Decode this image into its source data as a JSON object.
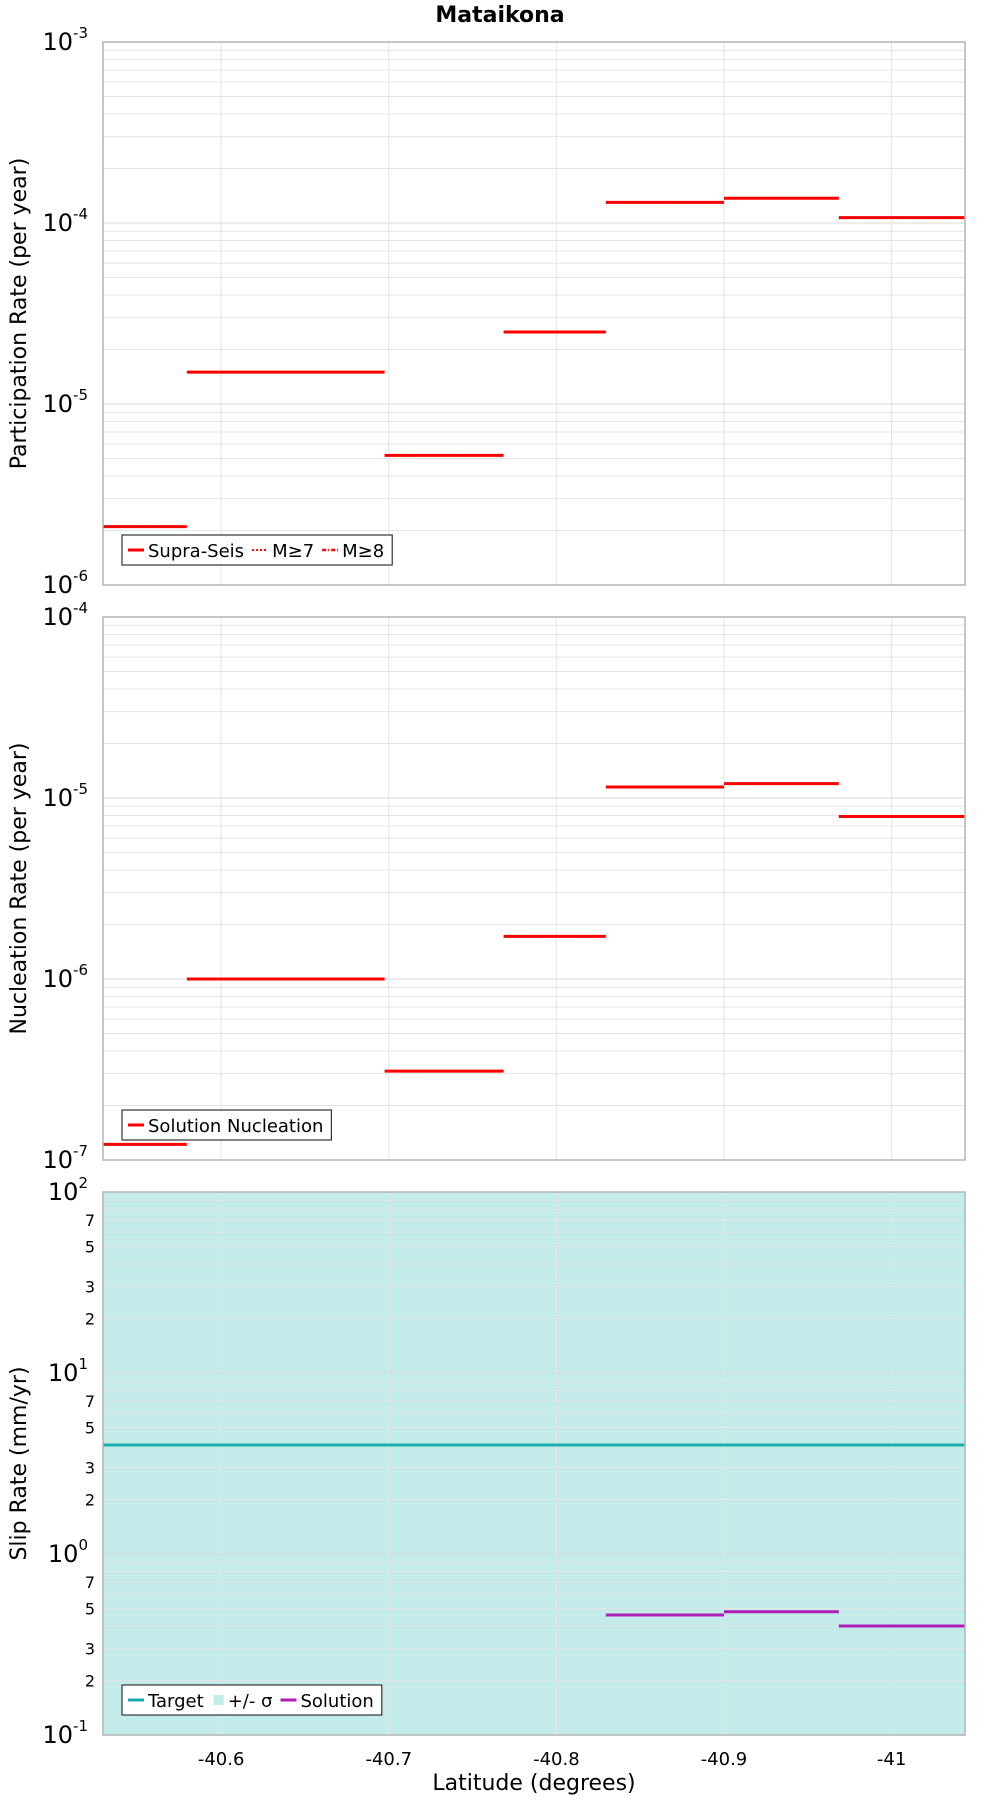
{
  "chart_data": {
    "type": "line",
    "title": "Mataikona",
    "xlabel": "Latitude (degrees)",
    "x_axis": {
      "min": -40.5295,
      "max": -41.0438,
      "reversed": true,
      "ticks": [
        -40.6,
        -40.7,
        -40.8,
        -40.9,
        -41
      ],
      "tick_labels": [
        "-40.6",
        "-40.7",
        "-40.8",
        "-40.9",
        "-41"
      ]
    },
    "panels": [
      {
        "id": "participation",
        "ylabel": "Participation Rate (per year)",
        "yscale": "log",
        "ylim_exp": [
          -6,
          -3
        ],
        "ytick_exps": [
          "-6",
          "-5",
          "-4",
          "-3"
        ],
        "legend_position": "bottom-left",
        "legend": [
          {
            "label": "Supra-Seis",
            "style": "solid"
          },
          {
            "label": "M≥7",
            "style": "dotted"
          },
          {
            "label": "M≥8",
            "style": "dashdot"
          }
        ],
        "series": [
          {
            "name": "Supra-Seis",
            "color": "#ff0000",
            "segments": [
              {
                "x0": -40.5295,
                "x1": -40.5795,
                "y": 2.1e-06
              },
              {
                "x0": -40.5795,
                "x1": -40.6975,
                "y": 1.5e-05
              },
              {
                "x0": -40.6975,
                "x1": -40.7685,
                "y": 5.2e-06
              },
              {
                "x0": -40.7685,
                "x1": -40.8295,
                "y": 2.5e-05
              },
              {
                "x0": -40.8295,
                "x1": -40.9,
                "y": 0.00013
              },
              {
                "x0": -40.9,
                "x1": -40.9685,
                "y": 0.000137
              },
              {
                "x0": -40.9685,
                "x1": -41.0438,
                "y": 0.000107
              }
            ]
          }
        ]
      },
      {
        "id": "nucleation",
        "ylabel": "Nucleation Rate (per year)",
        "yscale": "log",
        "ylim_exp": [
          -7,
          -4
        ],
        "ytick_exps": [
          "-7",
          "-6",
          "-5",
          "-4"
        ],
        "legend_position": "bottom-left",
        "legend": [
          {
            "label": "Solution Nucleation",
            "style": "solid"
          }
        ],
        "series": [
          {
            "name": "Solution Nucleation",
            "color": "#ff0000",
            "segments": [
              {
                "x0": -40.5295,
                "x1": -40.5795,
                "y": 1.22e-07
              },
              {
                "x0": -40.5795,
                "x1": -40.6975,
                "y": 1e-06
              },
              {
                "x0": -40.6975,
                "x1": -40.7685,
                "y": 3.1e-07
              },
              {
                "x0": -40.7685,
                "x1": -40.8295,
                "y": 1.72e-06
              },
              {
                "x0": -40.8295,
                "x1": -40.9,
                "y": 1.15e-05
              },
              {
                "x0": -40.9,
                "x1": -40.9685,
                "y": 1.2e-05
              },
              {
                "x0": -40.9685,
                "x1": -41.0438,
                "y": 7.9e-06
              }
            ]
          }
        ]
      },
      {
        "id": "sliprate",
        "ylabel": "Slip Rate (mm/yr)",
        "yscale": "log",
        "ylim_exp": [
          -1,
          2
        ],
        "ytick_exps": [
          "-1",
          "0",
          "1",
          "2"
        ],
        "minor_tick_labels": [
          "2",
          "3",
          "5",
          "7"
        ],
        "legend_position": "bottom-left",
        "legend": [
          {
            "label": "Target",
            "style": "solid",
            "color": "#1aadad"
          },
          {
            "label": "+/- σ",
            "style": "fill",
            "color": "#c2ebe9"
          },
          {
            "label": "Solution",
            "style": "solid",
            "color": "#b01eb9"
          }
        ],
        "band": {
          "name": "+/- σ",
          "color": "#c2ebe9",
          "y0": 0.1,
          "y1": 100
        },
        "series": [
          {
            "name": "Target",
            "color": "#1aadad",
            "segments": [
              {
                "x0": -40.5295,
                "x1": -41.0438,
                "y": 4.0
              }
            ]
          },
          {
            "name": "Solution",
            "color": "#b01eb9",
            "segments": [
              {
                "x0": -40.8295,
                "x1": -40.9,
                "y": 0.46
              },
              {
                "x0": -40.9,
                "x1": -40.9685,
                "y": 0.48
              },
              {
                "x0": -40.9685,
                "x1": -41.0438,
                "y": 0.4
              }
            ]
          }
        ]
      }
    ]
  }
}
